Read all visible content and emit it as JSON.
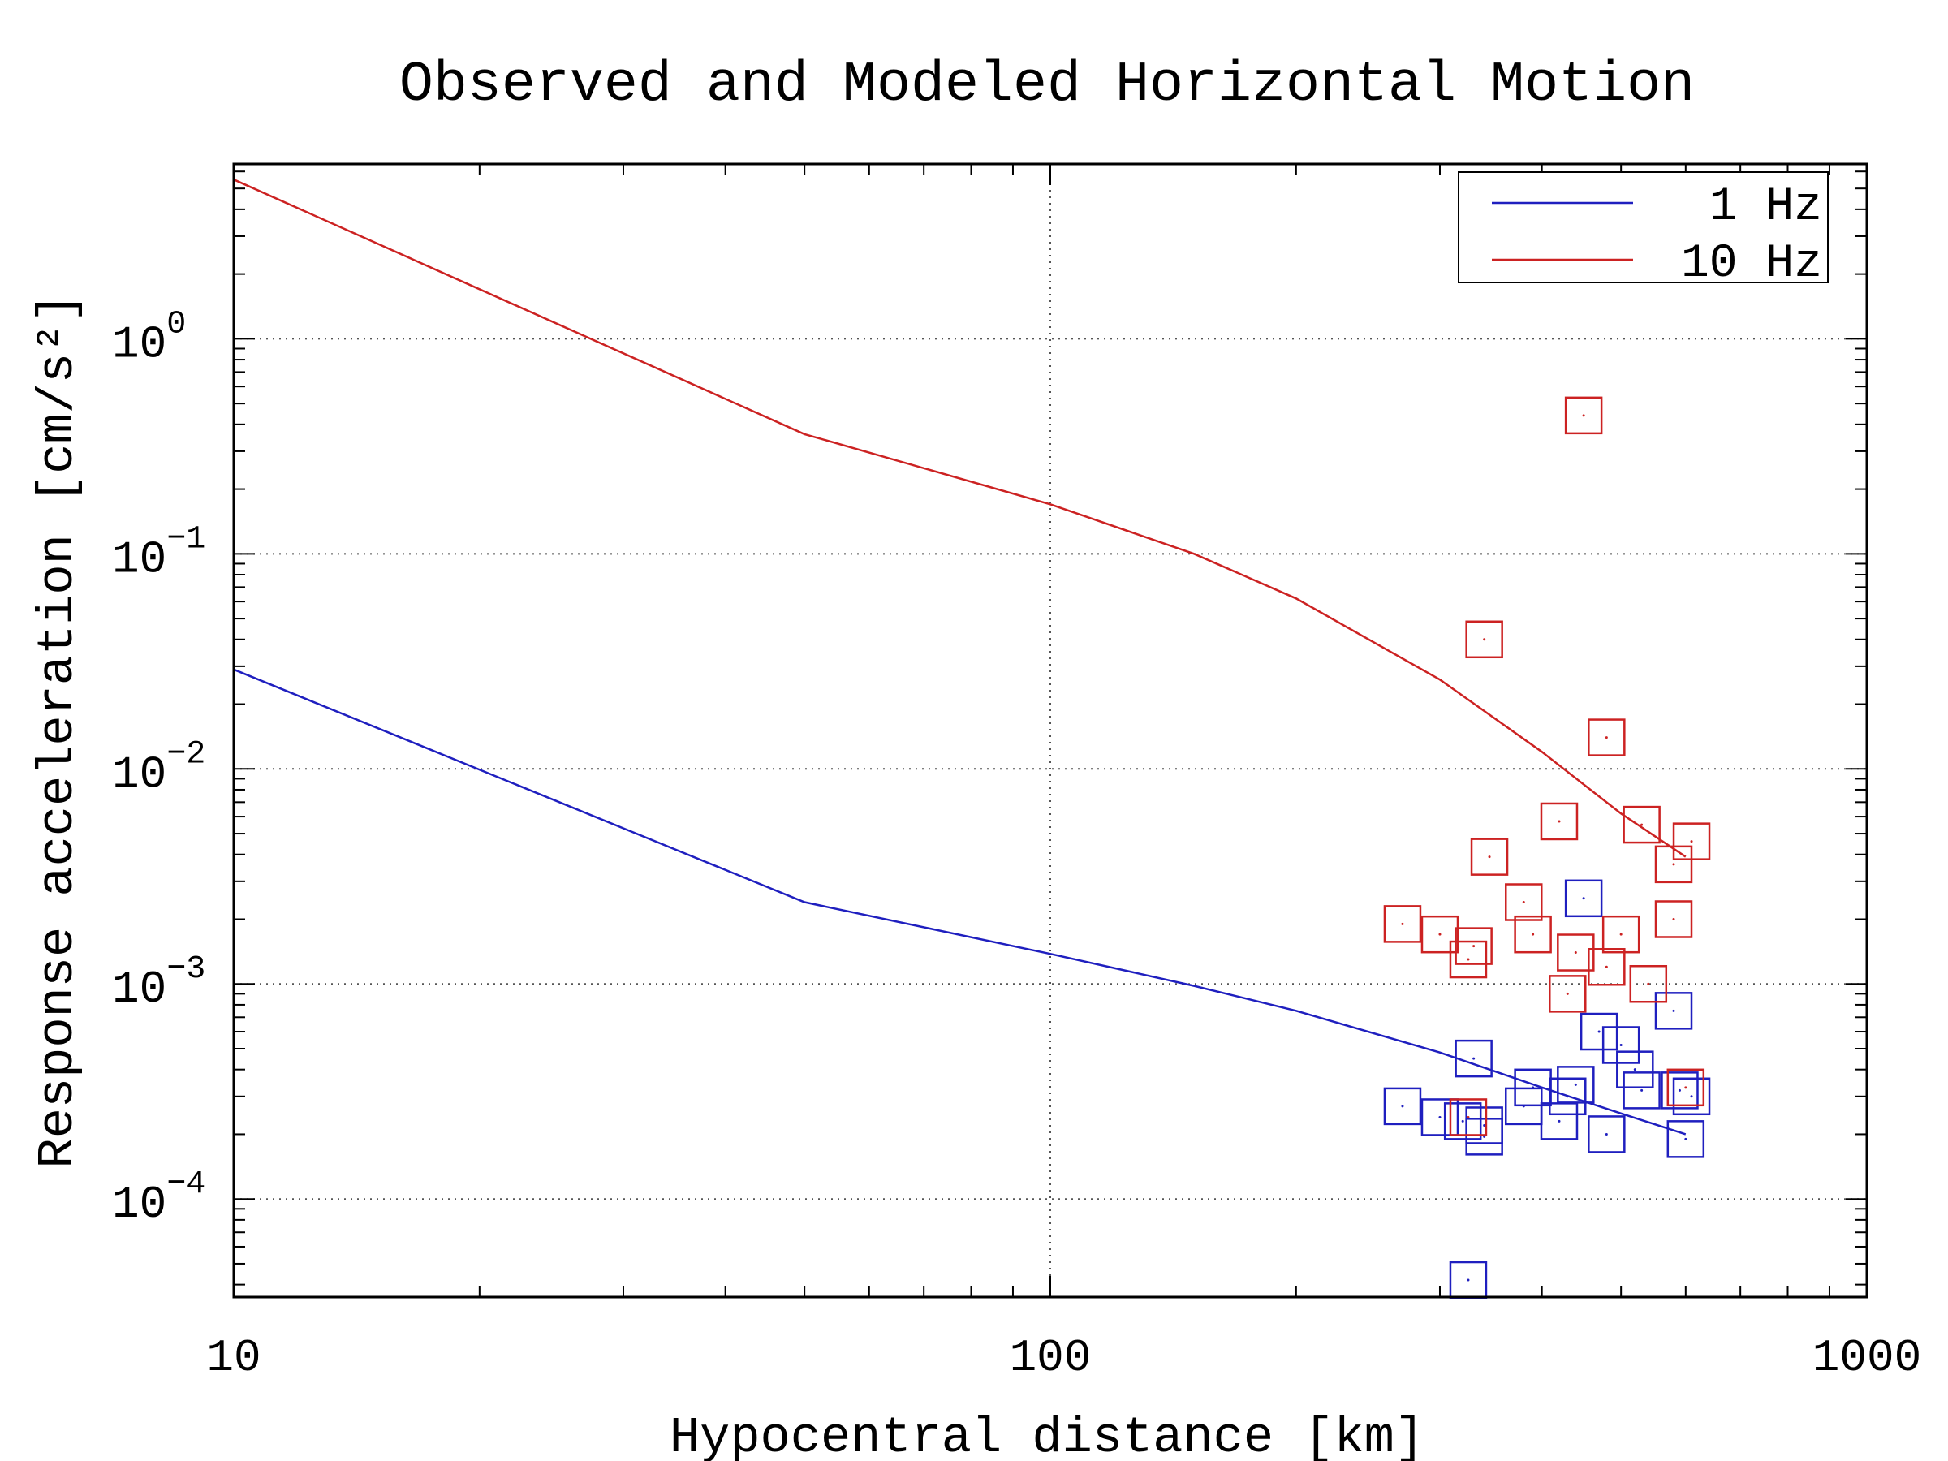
{
  "chart_data": {
    "type": "scatter",
    "title": "Observed and Modeled Horizontal Motion",
    "xlabel": "Hypocentral distance [km]",
    "ylabel": "Response acceleration [cm/s²]",
    "xscale": "log",
    "yscale": "log",
    "xlim": [
      10,
      1000
    ],
    "ylim": [
      3.5e-05,
      6.5
    ],
    "x_ticks": [
      10,
      100,
      1000
    ],
    "x_tick_labels": [
      "10",
      "100",
      "1000"
    ],
    "y_ticks": [
      0.0001,
      0.001,
      0.01,
      0.1,
      1
    ],
    "y_tick_labels": [
      {
        "base": "10",
        "exp": "−4"
      },
      {
        "base": "10",
        "exp": "−3"
      },
      {
        "base": "10",
        "exp": "−2"
      },
      {
        "base": "10",
        "exp": "−1"
      },
      {
        "base": "10",
        "exp": "0"
      }
    ],
    "grid": true,
    "legend_position": "top-right",
    "legend": [
      {
        "label": "1 Hz",
        "color": "#1f1fbf"
      },
      {
        "label": "10 Hz",
        "color": "#cc2222"
      }
    ],
    "model_lines": [
      {
        "name": "1 Hz",
        "color": "#1f1fbf",
        "x": [
          10,
          50,
          100,
          150,
          200,
          300,
          400,
          500,
          600
        ],
        "y": [
          0.029,
          0.0024,
          0.00138,
          0.00098,
          0.00075,
          0.00048,
          0.00033,
          0.00025,
          0.0002
        ]
      },
      {
        "name": "10 Hz",
        "color": "#cc2222",
        "x": [
          10,
          50,
          100,
          150,
          200,
          300,
          400,
          500,
          600
        ],
        "y": [
          5.5,
          0.36,
          0.17,
          0.1,
          0.062,
          0.026,
          0.012,
          0.0062,
          0.0039
        ]
      }
    ],
    "observed": [
      {
        "name": "1 Hz",
        "color": "#1f1fbf",
        "points": [
          [
            270,
            0.00027
          ],
          [
            300,
            0.00024
          ],
          [
            320,
            0.00023
          ],
          [
            330,
            0.00045
          ],
          [
            340,
            0.000195
          ],
          [
            340,
            0.00022
          ],
          [
            380,
            0.00027
          ],
          [
            390,
            0.00033
          ],
          [
            420,
            0.00023
          ],
          [
            430,
            0.0003
          ],
          [
            440,
            0.00034
          ],
          [
            450,
            0.0025
          ],
          [
            470,
            0.0006
          ],
          [
            480,
            0.0002
          ],
          [
            500,
            0.00052
          ],
          [
            520,
            0.0004
          ],
          [
            530,
            0.00032
          ],
          [
            580,
            0.00075
          ],
          [
            590,
            0.00032
          ],
          [
            600,
            0.00019
          ],
          [
            610,
            0.0003
          ],
          [
            325,
            4.2e-05
          ]
        ]
      },
      {
        "name": "10 Hz",
        "color": "#cc2222",
        "points": [
          [
            270,
            0.0019
          ],
          [
            300,
            0.0017
          ],
          [
            325,
            0.0013
          ],
          [
            330,
            0.0015
          ],
          [
            340,
            0.04
          ],
          [
            345,
            0.0039
          ],
          [
            380,
            0.0024
          ],
          [
            390,
            0.0017
          ],
          [
            420,
            0.0057
          ],
          [
            430,
            0.0009
          ],
          [
            440,
            0.0014
          ],
          [
            450,
            0.44
          ],
          [
            480,
            0.014
          ],
          [
            480,
            0.0012
          ],
          [
            500,
            0.0017
          ],
          [
            530,
            0.0055
          ],
          [
            540,
            0.001
          ],
          [
            580,
            0.0036
          ],
          [
            580,
            0.002
          ],
          [
            610,
            0.0046
          ],
          [
            600,
            0.00033
          ],
          [
            325,
            0.00024
          ]
        ]
      }
    ]
  }
}
